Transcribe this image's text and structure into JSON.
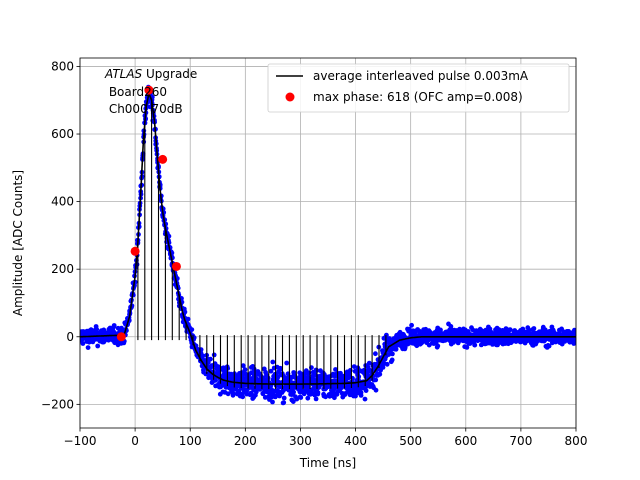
{
  "chart_data": {
    "type": "scatter",
    "xlabel": "Time [ns]",
    "ylabel": "Amplitude [ADC Counts]",
    "xlim": [
      -100,
      800
    ],
    "ylim": [
      -270,
      825
    ],
    "xticks": [
      -100,
      0,
      100,
      200,
      300,
      400,
      500,
      600,
      700,
      800
    ],
    "yticks": [
      -200,
      0,
      200,
      400,
      600,
      800
    ],
    "xtick_labels": [
      "−100",
      "0",
      "100",
      "200",
      "300",
      "400",
      "500",
      "600",
      "700",
      "800"
    ],
    "ytick_labels": [
      "−200",
      "0",
      "200",
      "400",
      "600",
      "800"
    ],
    "grid": true,
    "legend_position": "top-right",
    "annotation": {
      "line1_italic": "ATLAS",
      "line1_rest": " Upgrade",
      "line2": " Board260",
      "line3": " Ch000 70dB"
    },
    "series": [
      {
        "name": "average interleaved pulse 0.003mA",
        "kind": "line",
        "color": "#000000",
        "x": [
          -100,
          -20,
          -10,
          0,
          5,
          10,
          15,
          20,
          25,
          30,
          35,
          40,
          45,
          50,
          55,
          60,
          65,
          70,
          75,
          80,
          85,
          90,
          95,
          100,
          110,
          120,
          130,
          140,
          150,
          160,
          170,
          180,
          200,
          220,
          250,
          300,
          350,
          380,
          400,
          420,
          430,
          440,
          450,
          460,
          480,
          500,
          520,
          550,
          600,
          700,
          800
        ],
        "y": [
          0,
          5,
          60,
          180,
          280,
          420,
          580,
          680,
          720,
          700,
          640,
          540,
          440,
          370,
          320,
          280,
          240,
          200,
          160,
          120,
          80,
          50,
          30,
          10,
          -40,
          -70,
          -95,
          -110,
          -120,
          -128,
          -132,
          -135,
          -138,
          -139,
          -140,
          -140,
          -139,
          -138,
          -136,
          -130,
          -115,
          -90,
          -60,
          -30,
          -10,
          -3,
          0,
          0,
          0,
          0,
          0
        ]
      },
      {
        "name": "max phase: 618 (OFC amp=0.008)",
        "kind": "points",
        "color": "#ff0000",
        "x": [
          -25,
          0,
          25,
          50,
          75
        ],
        "y": [
          0,
          253,
          730,
          525,
          208
        ]
      },
      {
        "kind": "scatter-band",
        "color": "#0000ff",
        "note": "interleaved sample points"
      }
    ]
  }
}
